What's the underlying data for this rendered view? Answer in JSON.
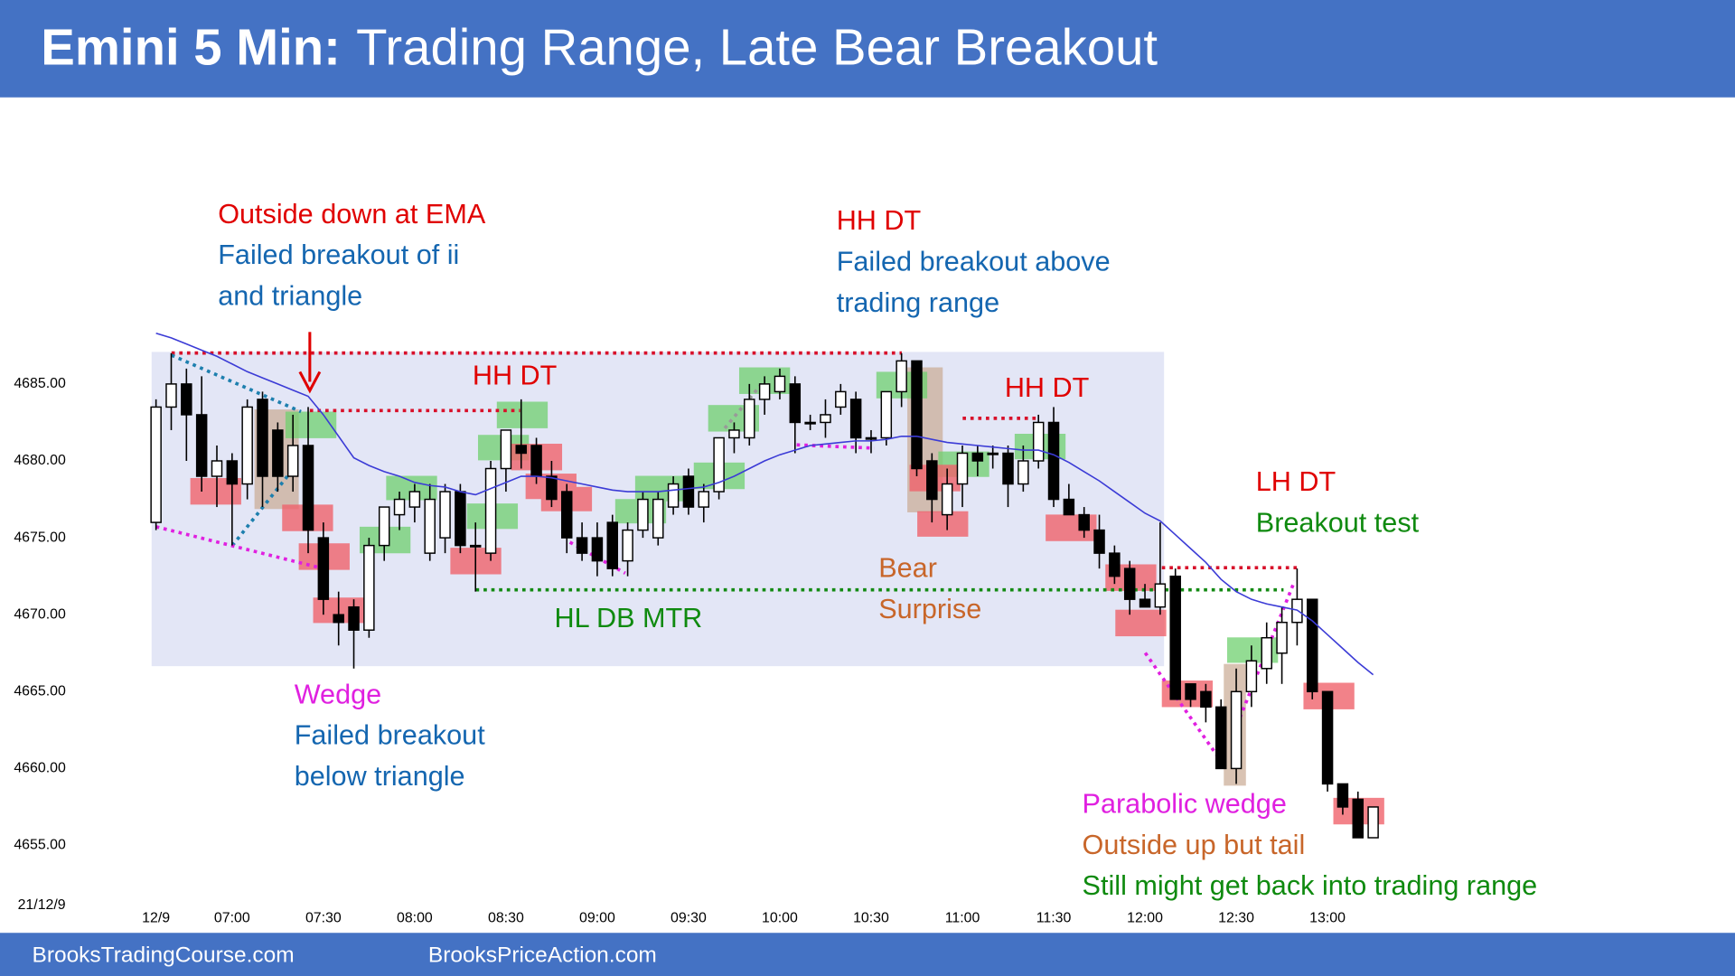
{
  "title": "Emini 5 Min:",
  "subtitle": "Trading Range, Late Bear Breakout",
  "footer": [
    "BrooksTradingCourse.com",
    "BrooksPriceAction.com"
  ],
  "chart_data": {
    "type": "candlestick",
    "date_label": "21/12/9",
    "up_color": "#ffffff",
    "down_color": "#000000",
    "ema_color": "#3b3bd6",
    "categories": [
      "12/9",
      null,
      null,
      null,
      null,
      "07:00",
      null,
      null,
      null,
      null,
      null,
      "07:30",
      null,
      null,
      null,
      null,
      null,
      "08:00",
      null,
      null,
      null,
      null,
      null,
      "08:30",
      null,
      null,
      null,
      null,
      null,
      "09:00",
      null,
      null,
      null,
      null,
      null,
      "09:30",
      null,
      null,
      null,
      null,
      null,
      "10:00",
      null,
      null,
      null,
      null,
      null,
      "10:30",
      null,
      null,
      null,
      null,
      null,
      "11:00",
      null,
      null,
      null,
      null,
      null,
      "11:30",
      null,
      null,
      null,
      null,
      null,
      "12:00",
      null,
      null,
      null,
      null,
      null,
      "12:30",
      null,
      null,
      null,
      null,
      null,
      "13:00",
      null,
      null,
      null
    ],
    "open": [
      4676,
      4683.5,
      4685,
      4683,
      4679,
      4680,
      4678.5,
      4684,
      4682,
      4679,
      4681,
      4675,
      4670,
      4670.5,
      4669,
      4674.5,
      4676.5,
      4677,
      4674,
      4675,
      4678,
      4674.5,
      4674,
      4679.5,
      4681,
      4681,
      4679,
      4678,
      4675,
      4675,
      4676,
      4673.5,
      4675.5,
      4675,
      4677,
      4679,
      4677,
      4678,
      4681.5,
      4681.5,
      4684,
      4684.5,
      4685,
      4682.5,
      4682.5,
      4683.5,
      4684,
      4681.5,
      4681.5,
      4684.5,
      4686.5,
      4680,
      4676.5,
      4678.5,
      4680.5,
      4680.5,
      4680.5,
      4678.5,
      4680,
      4682.5,
      4677.5,
      4676.5,
      4675.5,
      4674,
      4673,
      4671,
      4670.5,
      4672.5,
      4665.5,
      4665,
      4664,
      4660,
      4665,
      4666.5,
      4667.5,
      4669.5,
      4671,
      4665,
      4659,
      4658,
      4655.5
    ],
    "high": [
      4684,
      4687,
      4686,
      4685.5,
      4681,
      4680.5,
      4684,
      4684.5,
      4682.5,
      4683,
      4683.5,
      4676,
      4671.5,
      4671,
      4675,
      4677,
      4678,
      4678.5,
      4678.5,
      4678.5,
      4678.5,
      4676,
      4680,
      4682,
      4684,
      4681.5,
      4680,
      4678.5,
      4676,
      4676,
      4676.5,
      4676,
      4678,
      4678,
      4679,
      4679.5,
      4678.5,
      4681.5,
      4682.5,
      4685,
      4685.5,
      4686,
      4685.5,
      4683,
      4684,
      4685,
      4684.5,
      4682,
      4684.5,
      4687,
      4686.5,
      4680.5,
      4679.5,
      4681,
      4681,
      4681,
      4681,
      4681,
      4683,
      4683.5,
      4678.5,
      4677,
      4676.5,
      4674.5,
      4673.5,
      4672,
      4676,
      4673,
      4665.5,
      4665.5,
      4664.5,
      4666.5,
      4668,
      4669.5,
      4670.5,
      4673,
      4671,
      4665,
      4659,
      4658.5,
      4657.5
    ],
    "low": [
      4675.5,
      4682,
      4680,
      4678,
      4677,
      4674.5,
      4677.5,
      4677,
      4678,
      4678,
      4674,
      4670,
      4668,
      4666.5,
      4668.5,
      4673.5,
      4675.5,
      4676,
      4673.5,
      4674,
      4674,
      4671.5,
      4673.5,
      4678,
      4679.5,
      4678.5,
      4677,
      4674,
      4673.5,
      4672.5,
      4672.5,
      4672.5,
      4675,
      4674.5,
      4676.5,
      4676.5,
      4676,
      4677.5,
      4680.5,
      4681,
      4683,
      4684,
      4680.5,
      4682,
      4681.5,
      4683,
      4680.5,
      4680.5,
      4681,
      4683.5,
      4679,
      4676,
      4675.5,
      4677,
      4679,
      4679.5,
      4677,
      4678,
      4679.5,
      4677,
      4676.5,
      4675,
      4673,
      4672,
      4670,
      4670.5,
      4670,
      4664.5,
      4664,
      4663,
      4660,
      4659,
      4664,
      4665.5,
      4665.5,
      4668,
      4664.5,
      4658.5,
      4657,
      4655.5,
      4655.5
    ],
    "close": [
      4683.5,
      4685,
      4683,
      4679,
      4680,
      4678.5,
      4683.5,
      4679,
      4679,
      4681,
      4675.5,
      4671,
      4669.5,
      4669,
      4674.5,
      4677,
      4677.5,
      4678,
      4677.5,
      4678,
      4674.5,
      4674.5,
      4679.5,
      4682,
      4680.5,
      4679,
      4677.5,
      4675,
      4674,
      4673.5,
      4673,
      4675.5,
      4677.5,
      4677.5,
      4678.5,
      4677,
      4678,
      4681.5,
      4682,
      4684,
      4685,
      4685.5,
      4682.5,
      4682.5,
      4683,
      4684.5,
      4681.5,
      4681.5,
      4684.5,
      4686.5,
      4679.5,
      4677.5,
      4678.5,
      4680.5,
      4680,
      4680.5,
      4678.5,
      4680,
      4682.5,
      4677.5,
      4676.5,
      4675.5,
      4674,
      4672.5,
      4671,
      4670.5,
      4672,
      4664.5,
      4664.5,
      4664,
      4660,
      4665,
      4667,
      4668.5,
      4669.5,
      4671,
      4665,
      4659,
      4657.5,
      4655.5,
      4657.5
    ],
    "ema": [
      4688.3,
      4688.0,
      4687.6,
      4687.2,
      4686.8,
      4686.3,
      4685.8,
      4685.4,
      4685.0,
      4684.6,
      4684.2,
      4683.0,
      4681.6,
      4680.2,
      4679.7,
      4679.3,
      4679.0,
      4678.6,
      4678.4,
      4678.3,
      4678.0,
      4677.8,
      4678.2,
      4678.6,
      4679.0,
      4679.0,
      4678.9,
      4678.7,
      4678.5,
      4678.3,
      4678.1,
      4678.0,
      4678.0,
      4678.0,
      4678.1,
      4678.2,
      4678.3,
      4678.6,
      4679.0,
      4679.5,
      4680.0,
      4680.4,
      4680.7,
      4681.0,
      4681.1,
      4681.2,
      4681.3,
      4681.3,
      4681.4,
      4681.6,
      4681.6,
      4681.4,
      4681.2,
      4681.1,
      4681.0,
      4680.9,
      4680.8,
      4680.7,
      4680.7,
      4680.4,
      4679.9,
      4679.3,
      4678.7,
      4678.0,
      4677.3,
      4676.6,
      4676.1,
      4675.2,
      4674.3,
      4673.4,
      4672.3,
      4671.5,
      4671.0,
      4670.7,
      4670.5,
      4670.3,
      4669.6,
      4668.7,
      4667.8,
      4666.9,
      4666.1
    ],
    "ylim": [
      4652,
      4692
    ],
    "yticks": [
      {
        "value": 4655,
        "label": "4655.00"
      },
      {
        "value": 4660,
        "label": "4660.00"
      },
      {
        "value": 4665,
        "label": "4665.00"
      },
      {
        "value": 4670,
        "label": "4670.00"
      },
      {
        "value": 4675,
        "label": "4675.00"
      },
      {
        "value": 4680,
        "label": "4680.00"
      },
      {
        "value": 4685,
        "label": "4685.00"
      }
    ],
    "annotations": [
      {
        "color": "#e00000",
        "lines": [
          "Outside down at EMA"
        ]
      },
      {
        "color": "#1466b0",
        "lines": [
          "Failed breakout of ii",
          "and triangle"
        ]
      },
      {
        "color": "#e00000",
        "lines": [
          "HH DT"
        ]
      },
      {
        "color": "#e00000",
        "lines": [
          "HH DT"
        ]
      },
      {
        "color": "#1466b0",
        "lines": [
          "Failed breakout above",
          "trading range"
        ]
      },
      {
        "color": "#e00000",
        "lines": [
          "HH DT"
        ]
      },
      {
        "color": "#e00000",
        "lines": [
          "LH DT"
        ]
      },
      {
        "color": "#0f8a0f",
        "lines": [
          "Breakout test"
        ]
      },
      {
        "color": "#c8662a",
        "lines": [
          "Bear",
          "Surprise"
        ]
      },
      {
        "color": "#0f8a0f",
        "lines": [
          "HL DB MTR"
        ]
      },
      {
        "color": "#e020e0",
        "lines": [
          "Wedge"
        ]
      },
      {
        "color": "#1466b0",
        "lines": [
          "Failed breakout",
          "below triangle"
        ]
      },
      {
        "color": "#e020e0",
        "lines": [
          "Parabolic wedge"
        ]
      },
      {
        "color": "#c8662a",
        "lines": [
          "Outside up but tail"
        ]
      },
      {
        "color": "#0f8a0f",
        "lines": [
          "Still might get back into trading range"
        ]
      }
    ]
  }
}
